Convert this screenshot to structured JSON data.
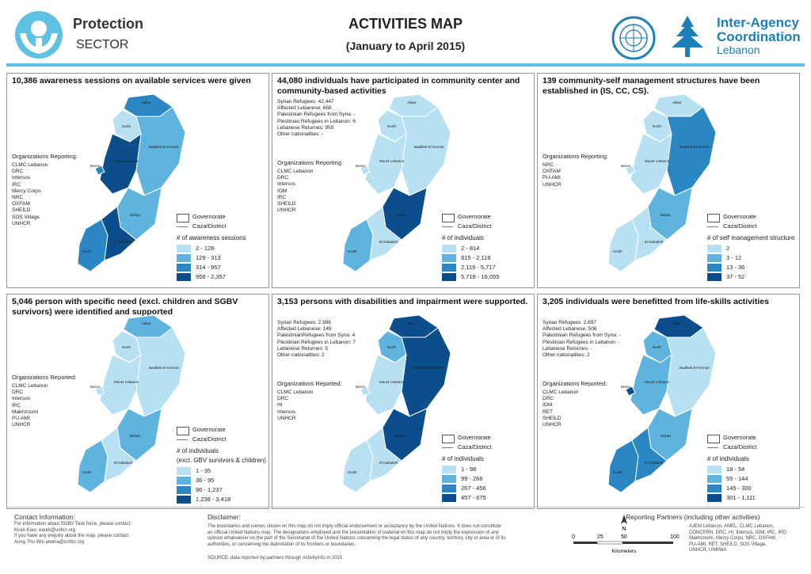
{
  "header": {
    "sector_title": "Protection",
    "sector_sub": "SECTOR",
    "title": "ACTIVITIES MAP",
    "subtitle": "(January to April 2015)",
    "iac_line1": "Inter-Agency",
    "iac_line2": "Coordination",
    "iac_line3": "Lebanon"
  },
  "colors": {
    "accent": "#5fc2e2",
    "class1": "#b7e1f2",
    "class2": "#5eb4df",
    "class3": "#2b87c4",
    "class4": "#0c4e8c",
    "iac_blue": "#1c7fb8"
  },
  "regions": {
    "akkar": "Akkar",
    "north": "North",
    "baalbek": "Baalbek-El Hermel",
    "mount_lebanon": "Mount Lebanon",
    "beirut": "Beirut",
    "bekaa": "Bekaa",
    "south": "South",
    "nabatieh": "El Nabatieh"
  },
  "legend_common": {
    "governorate": "Governorate",
    "district": "Caza/District"
  },
  "panels": [
    {
      "title": "10,386 awareness sessions on available services were given",
      "stats": [],
      "org_head": "Organizations Reporting:",
      "orgs": [
        "CLMC Lebanon",
        "DRC",
        "Intersos",
        "IRC",
        "Mercy Corps",
        "NRC",
        "OXFAM",
        "SHEILD",
        "SOS Village",
        "UNHCR"
      ],
      "legend_title": "# of awareness sessions",
      "classes": [
        "2 - 128",
        "129 - 313",
        "314 - 957",
        "958 - 2,357"
      ],
      "shading": [
        2,
        0,
        1,
        3,
        2,
        1,
        2,
        3
      ]
    },
    {
      "title": "44,080 individuals have participated in community center and community-based activities",
      "stats": [
        "Syrian Refugees: 42,447",
        "Affected Lebanese: 668",
        "Palestinian Refugees from Syria: -",
        "Plestinian Refugees in Lebanon: 6",
        "Lebanese Returnes: 959",
        "Other nationalities: -"
      ],
      "org_head": "Organizations Reporting:",
      "orgs": [
        "CLMC Lebanon",
        "DRC",
        "Intersos",
        "IOM",
        "IRC",
        "SHEILD",
        "UNHCR"
      ],
      "legend_title": "# of individuals",
      "classes": [
        "2 - 814",
        "815 - 2,118",
        "2,119 - 5,717",
        "5,718 - 16,055"
      ],
      "shading": [
        0,
        0,
        0,
        0,
        0,
        3,
        1,
        0
      ]
    },
    {
      "title": "139 community-self management structures have been established in (IS, CC, CS).",
      "stats": [],
      "org_head": "Organizations Reporting:",
      "orgs": [
        "NRC",
        "OXFAM",
        "PU-AMI",
        "UNHCR"
      ],
      "legend_title": "# of self management structure",
      "classes": [
        "2",
        "3 - 12",
        "13 - 36",
        "37 - 52"
      ],
      "shading": [
        0,
        0,
        2,
        0,
        0,
        1,
        0,
        0
      ]
    },
    {
      "title": "5,046 person with specific need (excl. children and SGBV survivors) were identified and supported",
      "stats": [],
      "org_head": "Organizations Reported:",
      "orgs": [
        "CLMC Lebanon",
        "DRC",
        "Intersos",
        "IRC",
        "Makhzoumi",
        "PU-AMI",
        "UNHCR"
      ],
      "legend_title": "# of individuals",
      "legend_note": "(excl. GBV survivors & children)",
      "classes": [
        "1 - 35",
        "36 - 95",
        "96 - 1,237",
        "1,238 - 3,418"
      ],
      "shading": [
        1,
        0,
        0,
        0,
        0,
        1,
        1,
        0
      ]
    },
    {
      "title": "3,153 persons with disabilities and impairment were supported.",
      "stats": [
        "Syrian Refugees: 2,986",
        "Affected Lebanese: 149",
        "PalestinianRefugees from Syria: 4",
        "Plestinian Refugees in Lebanon: 7",
        "Lebanese Returnes: 5",
        "Other nationalities: 2"
      ],
      "org_head": "Organizations Reported:",
      "orgs": [
        "CLMC Lebanon",
        "DRC",
        "HI",
        "Intersos",
        "UNHCR"
      ],
      "legend_title": "# of individuals",
      "classes": [
        "1 - 98",
        "99 - 266",
        "267 - 456",
        "457 - 675"
      ],
      "shading": [
        3,
        1,
        3,
        0,
        0,
        3,
        0,
        0
      ]
    },
    {
      "title": "3,205 individuals were benefitted from life-skills activities",
      "stats": [
        "Syrian Refugees: 2,697",
        "Affected Lebanese: 506",
        "Palestinian Refugees from Syria: -",
        "Plestinian Refugees in Lebanon: -",
        "Lebanese Returnes: -",
        "Other nationalities: 2"
      ],
      "org_head": "Organizations Reported:",
      "orgs": [
        "CLMC Lebanon",
        "DRC",
        "IOM",
        "RET",
        "SHEILD",
        "UNHCR"
      ],
      "legend_title": "# of individuals",
      "classes": [
        "18 - 54",
        "55 - 144",
        "145 - 300",
        "301 - 1,111"
      ],
      "shading": [
        3,
        1,
        0,
        1,
        3,
        1,
        2,
        2
      ]
    }
  ],
  "footer": {
    "contact_head": "Contact Information:",
    "contact_lines": [
      "For information about SGBV Task force, please contact:",
      "Kiran Kaur, kaurk@unhcr.org",
      "If you have any enquiry about the map, please contact:",
      "Aung Thu Win atwina@unhcr.org"
    ],
    "disclaimer_head": "Disclaimer:",
    "disclaimer_lines": [
      "The boundaries and names shown on this map do not imply official endorsement or acceptancy by the United Nations. It does not constitute",
      "an official United Nations map. The designations employed and the presentation of material on this map do not imply the expression of any",
      "opinion whatsoever on the part of the Secretariat of the United Nations concerning the legal status of any country, territory, city or area or of its",
      "authorities, or concerning the delimitation of its frontiers or boundaries."
    ],
    "source": "SOURCE: data reported by partners through ActivityInfo in 2015",
    "scale_ticks": [
      "0",
      "25",
      "50",
      "100"
    ],
    "scale_unit": "Kilometers",
    "north": "N",
    "partners_head": "Reporting Partners (including other activities)",
    "partners_lines": [
      "AJEM Lebanon, AMEL, CLMC Lebanon,",
      "CONCERN, DRC, HI, Intersos, IOM, IRC, IRD,",
      "Makhzoumi, Mercy Corps, NRC, OXFAM,",
      "PU-AMI, RET, SHEILD, SOS Village,",
      "UNHCR, UNRWA"
    ]
  }
}
